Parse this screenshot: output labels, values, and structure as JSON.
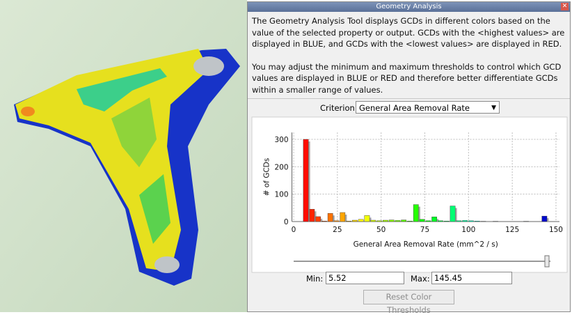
{
  "window": {
    "title": "Geometry Analysis",
    "description": [
      "The Geometry Analysis Tool displays GCDs in different colors based on the value of the selected property or output. GCDs with the <highest values> are displayed in BLUE, and GCDs with the <lowest values> are displayed in RED.",
      "You may adjust the minimum and maximum thresholds to control which GCD values are displayed in BLUE or RED and therefore better differentiate GCDs within a  smaller range of values."
    ]
  },
  "criterion": {
    "label": "Criterion:",
    "value": "General Area Removal Rate"
  },
  "chart_data": {
    "type": "histogram",
    "x_label": "General Area Removal Rate (mm^2 / s)",
    "y_label": "# of GCDs",
    "bins": [
      5.52,
      9.02,
      12.52,
      16.01,
      19.51,
      23.01,
      26.51,
      30.01,
      33.51,
      37.0,
      40.5,
      44.0,
      47.5,
      51.0,
      54.5,
      57.99,
      61.49,
      64.99,
      68.49,
      71.99,
      75.49,
      78.98,
      82.48,
      85.98,
      89.48,
      92.98,
      96.48,
      99.97,
      103.47,
      106.97,
      110.47,
      113.97,
      117.47,
      120.96,
      124.46,
      127.96,
      131.46,
      134.96,
      138.46,
      141.95,
      145.45
    ],
    "values": [
      300,
      45,
      18,
      2,
      30,
      3,
      33,
      2,
      5,
      8,
      22,
      5,
      3,
      5,
      6,
      4,
      6,
      2,
      62,
      8,
      3,
      17,
      3,
      2,
      57,
      3,
      4,
      3,
      2,
      1,
      0,
      1,
      0,
      0,
      0,
      0,
      1,
      0,
      0,
      20
    ],
    "xlim": [
      -1,
      152
    ],
    "ylim": [
      0,
      325
    ],
    "xticks": [
      0,
      25,
      50,
      75,
      100,
      125,
      150
    ],
    "yticks": [
      0,
      100,
      200,
      300
    ],
    "grid": true
  },
  "thresholds": {
    "min_label": "Min:",
    "min": "5.52",
    "max_label": "Max:",
    "max": "145.45"
  },
  "reset_button": "Reset Color Thresholds"
}
